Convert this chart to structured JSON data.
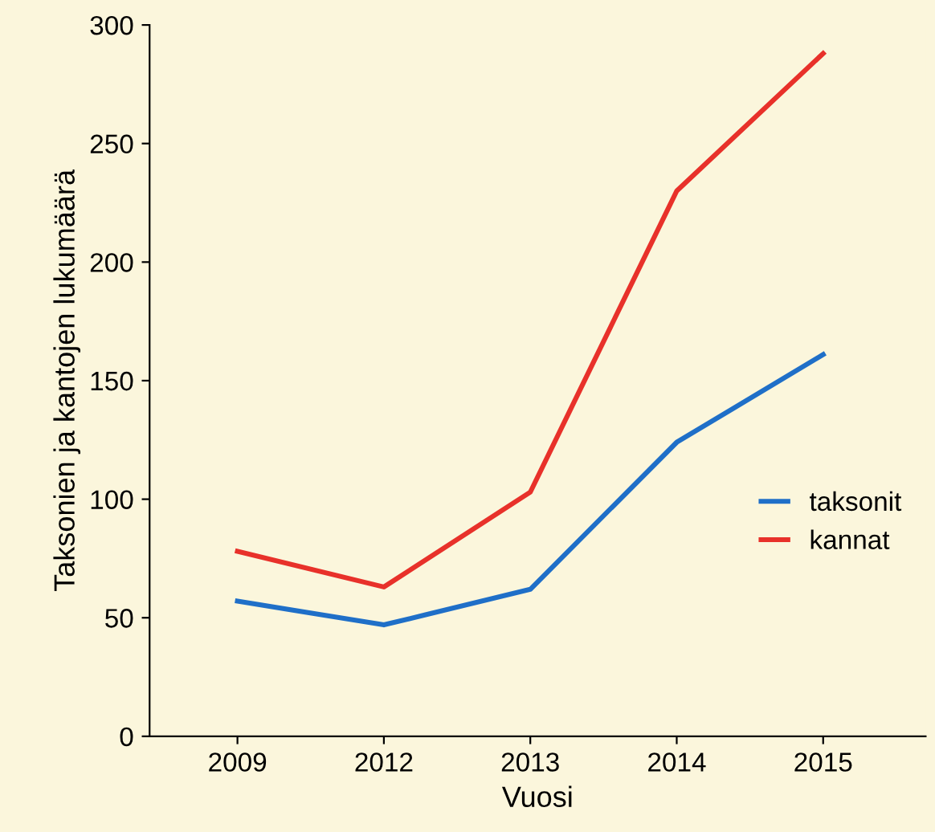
{
  "chart_data": {
    "type": "line",
    "xlabel": "Vuosi",
    "ylabel": "Taksonien ja kantojen lukumäärä",
    "categories": [
      "2009",
      "2012",
      "2013",
      "2014",
      "2015"
    ],
    "series": [
      {
        "name": "taksonit",
        "color": "#1f6fc8",
        "values": [
          57,
          47,
          62,
          124,
          161
        ]
      },
      {
        "name": "kannat",
        "color": "#e8312a",
        "values": [
          78,
          63,
          103,
          230,
          288
        ]
      }
    ],
    "ylim": [
      0,
      300
    ],
    "yticks": [
      0,
      50,
      100,
      150,
      200,
      250,
      300
    ],
    "grid": false,
    "legend": "right",
    "marker": "none",
    "line_style": "solid"
  }
}
